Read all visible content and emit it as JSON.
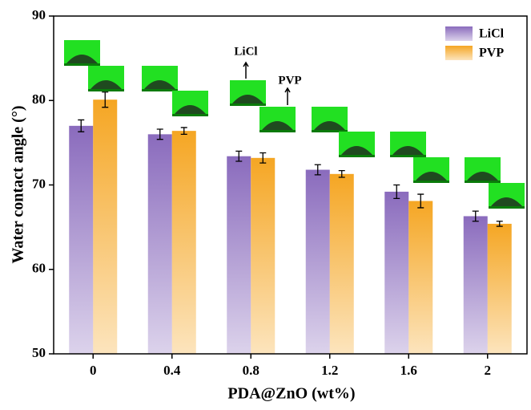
{
  "chart_data": {
    "type": "bar",
    "x_label": "PDA@ZnO (wt%)",
    "y_label": "Water contact angle (°)",
    "categories": [
      "0",
      "0.4",
      "0.8",
      "1.2",
      "1.6",
      "2"
    ],
    "series": [
      {
        "name": "LiCl",
        "color": "#8a6bbd",
        "values": [
          77.0,
          76.0,
          73.4,
          71.8,
          69.2,
          66.3
        ],
        "errors": [
          0.7,
          0.6,
          0.6,
          0.6,
          0.8,
          0.6
        ]
      },
      {
        "name": "PVP",
        "color": "#f5a623",
        "values": [
          80.1,
          76.4,
          73.2,
          71.3,
          68.1,
          65.4
        ],
        "errors": [
          0.9,
          0.4,
          0.6,
          0.4,
          0.8,
          0.3
        ]
      }
    ],
    "ylim": [
      50,
      90
    ],
    "yticks": [
      50,
      60,
      70,
      80,
      90
    ],
    "legend": "top-right",
    "annotations": [
      "LiCl",
      "PVP"
    ]
  }
}
